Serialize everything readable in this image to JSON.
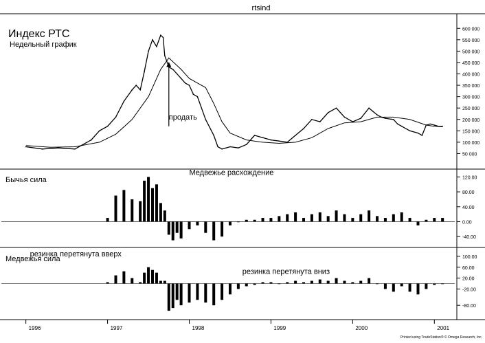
{
  "window": {
    "title": "rtsind"
  },
  "footer": {
    "credit": "Printed using TradeStation® © Omega Research, Inc."
  },
  "chart_data": [
    {
      "id": "price",
      "type": "line",
      "title": "Индекс РТС",
      "subtitle": "Недельный график",
      "ylim": [
        0,
        640000
      ],
      "yticks": [
        {
          "v": 600000,
          "label": "600 000"
        },
        {
          "v": 550000,
          "label": "550 000"
        },
        {
          "v": 500000,
          "label": "500 000"
        },
        {
          "v": 450000,
          "label": "450 000"
        },
        {
          "v": 400000,
          "label": "400 000"
        },
        {
          "v": 350000,
          "label": "350 000"
        },
        {
          "v": 300000,
          "label": "300 000"
        },
        {
          "v": 250000,
          "label": "250 000"
        },
        {
          "v": 200000,
          "label": "200 000"
        },
        {
          "v": 150000,
          "label": "150 000"
        },
        {
          "v": 100000,
          "label": "100 000"
        },
        {
          "v": 50000,
          "label": "50 000"
        }
      ],
      "series": [
        {
          "name": "",
          "style": "price",
          "x": [
            1996.0,
            1996.2,
            1996.4,
            1996.6,
            1996.8,
            1996.9,
            1997.0,
            1997.1,
            1997.2,
            1997.3,
            1997.35,
            1997.4,
            1997.45,
            1997.5,
            1997.55,
            1997.6,
            1997.65,
            1997.68,
            1997.7,
            1997.75,
            1997.8,
            1997.85,
            1997.9,
            1997.95,
            1998.0,
            1998.05,
            1998.1,
            1998.2,
            1998.3,
            1998.35,
            1998.4,
            1998.45,
            1998.5,
            1998.6,
            1998.7,
            1998.8,
            1998.9,
            1999.0,
            1999.1,
            1999.2,
            1999.3,
            1999.4,
            1999.5,
            1999.6,
            1999.7,
            1999.8,
            1999.85,
            1999.9,
            2000.0,
            2000.1,
            2000.2,
            2000.25,
            2000.3,
            2000.35,
            2000.4,
            2000.5,
            2000.55,
            2000.6,
            2000.7,
            2000.8,
            2000.85,
            2000.9,
            2000.95,
            2001.0,
            2001.05,
            2001.1
          ],
          "y": [
            80000,
            70000,
            75000,
            70000,
            110000,
            150000,
            170000,
            210000,
            280000,
            330000,
            350000,
            330000,
            410000,
            500000,
            550000,
            520000,
            570000,
            560000,
            480000,
            430000,
            420000,
            400000,
            380000,
            360000,
            350000,
            310000,
            300000,
            200000,
            130000,
            80000,
            70000,
            75000,
            80000,
            75000,
            90000,
            130000,
            120000,
            110000,
            105000,
            100000,
            130000,
            160000,
            200000,
            190000,
            230000,
            250000,
            230000,
            210000,
            190000,
            205000,
            250000,
            235000,
            220000,
            210000,
            205000,
            200000,
            180000,
            170000,
            150000,
            140000,
            130000,
            175000,
            180000,
            175000,
            170000,
            170000
          ]
        },
        {
          "name": "",
          "style": "ema",
          "x": [
            1996.0,
            1996.3,
            1996.6,
            1996.9,
            1997.1,
            1997.3,
            1997.5,
            1997.65,
            1997.75,
            1997.9,
            1998.0,
            1998.1,
            1998.2,
            1998.3,
            1998.4,
            1998.5,
            1998.7,
            1998.9,
            1999.1,
            1999.3,
            1999.5,
            1999.7,
            1999.9,
            2000.1,
            2000.3,
            2000.5,
            2000.7,
            2000.9,
            2001.0,
            2001.1
          ],
          "y": [
            85000,
            78000,
            80000,
            100000,
            135000,
            200000,
            300000,
            420000,
            470000,
            420000,
            380000,
            360000,
            340000,
            270000,
            190000,
            140000,
            110000,
            100000,
            95000,
            100000,
            120000,
            160000,
            185000,
            190000,
            210000,
            210000,
            200000,
            175000,
            170000,
            168000
          ]
        }
      ],
      "annotations": [
        {
          "text": "продать",
          "x": 1997.75,
          "y": 200000
        }
      ]
    },
    {
      "id": "bull",
      "type": "bar",
      "title": "Бычья сила",
      "ylim": [
        -60,
        130
      ],
      "yticks": [
        {
          "v": 120,
          "label": "120.00"
        },
        {
          "v": 80,
          "label": "80.00"
        },
        {
          "v": 40,
          "label": "40.00"
        },
        {
          "v": 0,
          "label": "0.00"
        },
        {
          "v": -40,
          "label": "-40.00"
        }
      ],
      "series": [
        {
          "name": "",
          "x": [
            1997.0,
            1997.1,
            1997.2,
            1997.3,
            1997.4,
            1997.45,
            1997.5,
            1997.55,
            1997.6,
            1997.65,
            1997.7,
            1997.75,
            1997.8,
            1997.85,
            1997.9,
            1998.0,
            1998.1,
            1998.2,
            1998.3,
            1998.4,
            1998.5,
            1998.6,
            1998.7,
            1998.8,
            1998.9,
            1999.0,
            1999.1,
            1999.2,
            1999.3,
            1999.4,
            1999.5,
            1999.6,
            1999.7,
            1999.8,
            1999.9,
            2000.0,
            2000.1,
            2000.2,
            2000.3,
            2000.4,
            2000.5,
            2000.6,
            2000.7,
            2000.8,
            2000.9,
            2001.0,
            2001.1
          ],
          "y": [
            10,
            70,
            85,
            60,
            55,
            110,
            120,
            90,
            100,
            50,
            30,
            -35,
            -50,
            -30,
            -45,
            -20,
            -10,
            -30,
            -50,
            -40,
            -10,
            0,
            5,
            5,
            10,
            10,
            15,
            20,
            25,
            10,
            20,
            25,
            15,
            30,
            20,
            10,
            20,
            30,
            15,
            10,
            20,
            25,
            10,
            -10,
            5,
            10,
            10
          ]
        }
      ],
      "annotations": [
        {
          "text": "Медвежье расхождение",
          "x": 1998.0,
          "y": 125
        }
      ]
    },
    {
      "id": "bear",
      "type": "bar",
      "title": "Медвежья сила",
      "ylim": [
        -120,
        120
      ],
      "yticks": [
        {
          "v": 100,
          "label": "100.00"
        },
        {
          "v": 60,
          "label": "60.00"
        },
        {
          "v": 20,
          "label": "20.00"
        },
        {
          "v": -20,
          "label": "-20.00"
        },
        {
          "v": -80,
          "label": "-80.00"
        }
      ],
      "series": [
        {
          "name": "",
          "x": [
            1997.0,
            1997.1,
            1997.2,
            1997.3,
            1997.4,
            1997.45,
            1997.5,
            1997.55,
            1997.6,
            1997.65,
            1997.7,
            1997.75,
            1997.8,
            1997.85,
            1997.9,
            1998.0,
            1998.1,
            1998.2,
            1998.3,
            1998.4,
            1998.5,
            1998.6,
            1998.7,
            1998.8,
            1998.9,
            1999.0,
            1999.1,
            1999.2,
            1999.3,
            1999.4,
            1999.5,
            1999.6,
            1999.7,
            1999.8,
            1999.9,
            2000.0,
            2000.1,
            2000.2,
            2000.3,
            2000.4,
            2000.5,
            2000.6,
            2000.7,
            2000.8,
            2000.9,
            2001.0,
            2001.1
          ],
          "y": [
            5,
            30,
            45,
            20,
            5,
            40,
            60,
            50,
            40,
            10,
            10,
            -100,
            -90,
            -60,
            -80,
            -70,
            -60,
            -70,
            -80,
            -60,
            -40,
            -20,
            -10,
            -5,
            5,
            5,
            0,
            5,
            10,
            5,
            10,
            15,
            10,
            20,
            10,
            5,
            10,
            20,
            0,
            -20,
            -30,
            -10,
            -30,
            -40,
            -20,
            -5,
            0
          ]
        }
      ],
      "annotations": [
        {
          "text": "резинка перетянута вверх",
          "x": 1996.05,
          "y": 100
        },
        {
          "text": "резинка перетянута вниз",
          "x": 1998.65,
          "y": 35
        }
      ]
    }
  ],
  "x_axis": {
    "ticks": [
      "1996",
      "1997",
      "1998",
      "1999",
      "2000",
      "2001"
    ]
  }
}
